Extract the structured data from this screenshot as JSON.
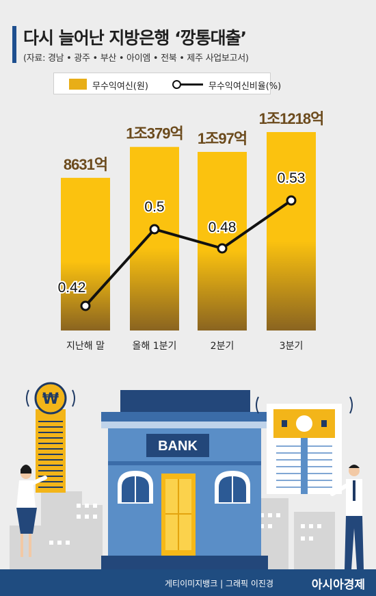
{
  "header": {
    "title": "다시 늘어난 지방은행 ‘깡통대출’",
    "subtitle": "(자료: 경남 • 광주 • 부산 • 아이엠 • 전북 • 제주 사업보고서)"
  },
  "legend": {
    "bar_label": "무수익여신(원)",
    "line_label": "무수익여신비율(%)"
  },
  "chart_data": {
    "type": "bar",
    "categories": [
      "지난해 말",
      "올해 1분기",
      "2분기",
      "3분기"
    ],
    "series": [
      {
        "name": "무수익여신(원)",
        "type": "bar",
        "values": [
          8631,
          10379,
          10097,
          11218
        ],
        "labels": [
          "8631억",
          "1조379억",
          "1조97억",
          "1조1218억"
        ]
      },
      {
        "name": "무수익여신비율(%)",
        "type": "line",
        "values": [
          0.42,
          0.5,
          0.48,
          0.53
        ],
        "labels": [
          "0.42",
          "0.5",
          "0.48",
          "0.53"
        ]
      }
    ],
    "colors": {
      "bar_top": "#fbc20f",
      "bar_bottom": "#8a6420",
      "line": "#111111",
      "bar_label": "#6b4a1c"
    }
  },
  "illustration": {
    "bank_sign": "BANK",
    "coin_symbol": "₩"
  },
  "footer": {
    "credit": "게티이미지뱅크 | 그래픽 이진경",
    "brand": "아시아경제"
  }
}
